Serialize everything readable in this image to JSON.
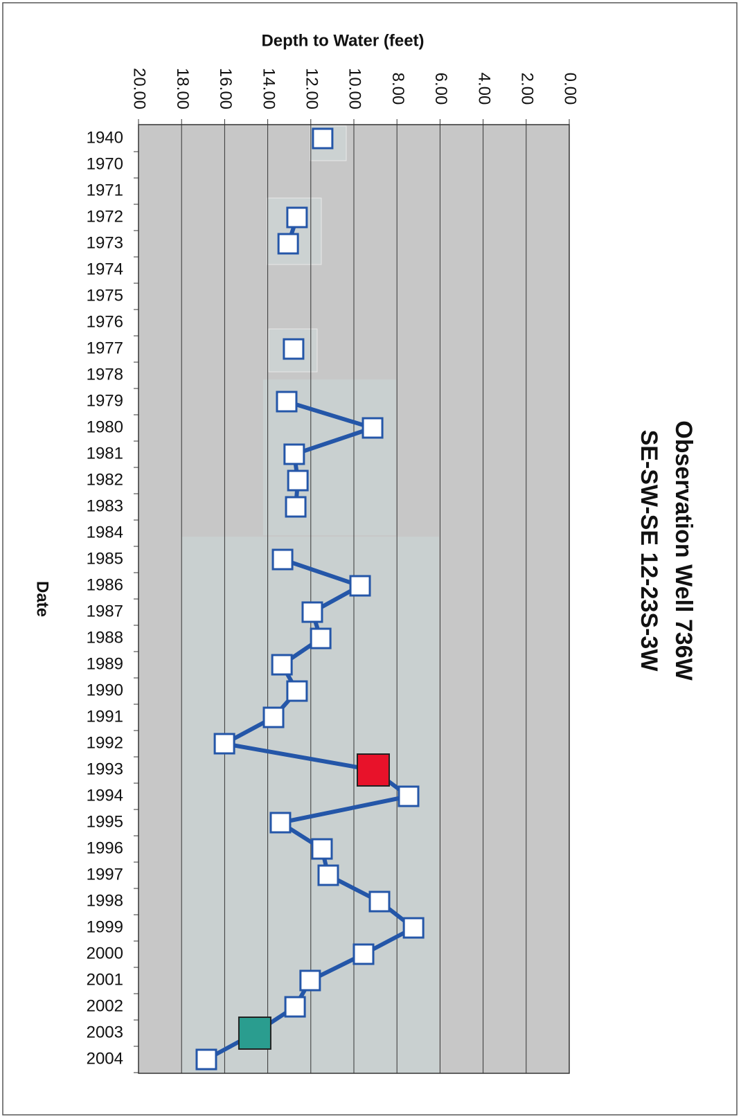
{
  "chart_data": {
    "type": "line",
    "orientation": "horizontal",
    "title": "Observation Well 736W",
    "subtitle": "SE-SW-SE 12-23S-3W",
    "x_label": "Depth to Water (feet)",
    "y_label": "Date",
    "categories": [
      "1940",
      "1970",
      "1971",
      "1972",
      "1973",
      "1974",
      "1975",
      "1976",
      "1977",
      "1978",
      "1979",
      "1980",
      "1981",
      "1982",
      "1983",
      "1984",
      "1985",
      "1986",
      "1987",
      "1988",
      "1989",
      "1990",
      "1991",
      "1992",
      "1993",
      "1994",
      "1995",
      "1996",
      "1997",
      "1998",
      "1999",
      "2000",
      "2001",
      "2002",
      "2003",
      "2004"
    ],
    "series": [
      {
        "color": "#2456a8",
        "values": [
          11.45,
          null,
          null,
          12.64,
          13.05,
          null,
          null,
          null,
          12.8,
          null,
          13.12,
          9.13,
          12.77,
          12.6,
          12.7,
          null,
          13.31,
          9.71,
          11.93,
          11.54,
          13.34,
          12.64,
          13.73,
          16.01,
          9.1,
          7.46,
          13.41,
          11.48,
          11.19,
          8.81,
          7.23,
          9.55,
          12.03,
          12.73,
          14.6,
          16.85
        ],
        "marker_colors": [
          "#ffffff",
          "#ffffff",
          "#ffffff",
          "#ffffff",
          "#ffffff",
          "#ffffff",
          "#ffffff",
          "#ffffff",
          "#ffffff",
          "#ffffff",
          "#ffffff",
          "#ffffff",
          "#ffffff",
          "#ffffff",
          "#ffffff",
          "#ffffff",
          "#ffffff",
          "#ffffff",
          "#ffffff",
          "#ffffff",
          "#ffffff",
          "#ffffff",
          "#ffffff",
          "#ffffff",
          "#e8122a",
          "#ffffff",
          "#ffffff",
          "#ffffff",
          "#ffffff",
          "#ffffff",
          "#ffffff",
          "#ffffff",
          "#ffffff",
          "#ffffff",
          "#2a9d8f",
          "#ffffff"
        ]
      }
    ],
    "xlim": [
      20,
      0
    ],
    "xticks": [
      {
        "value": 20,
        "label": "20.00"
      },
      {
        "value": 18,
        "label": "18.00"
      },
      {
        "value": 16,
        "label": "16.00"
      },
      {
        "value": 14,
        "label": "14.00"
      },
      {
        "value": 12,
        "label": "12.00"
      },
      {
        "value": 10,
        "label": "10.00"
      },
      {
        "value": 8,
        "label": "8.00"
      },
      {
        "value": 6,
        "label": "6.00"
      },
      {
        "value": 4,
        "label": "4.00"
      },
      {
        "value": 2,
        "label": "2.00"
      },
      {
        "value": 0,
        "label": "0.00"
      }
    ],
    "grid": true
  }
}
